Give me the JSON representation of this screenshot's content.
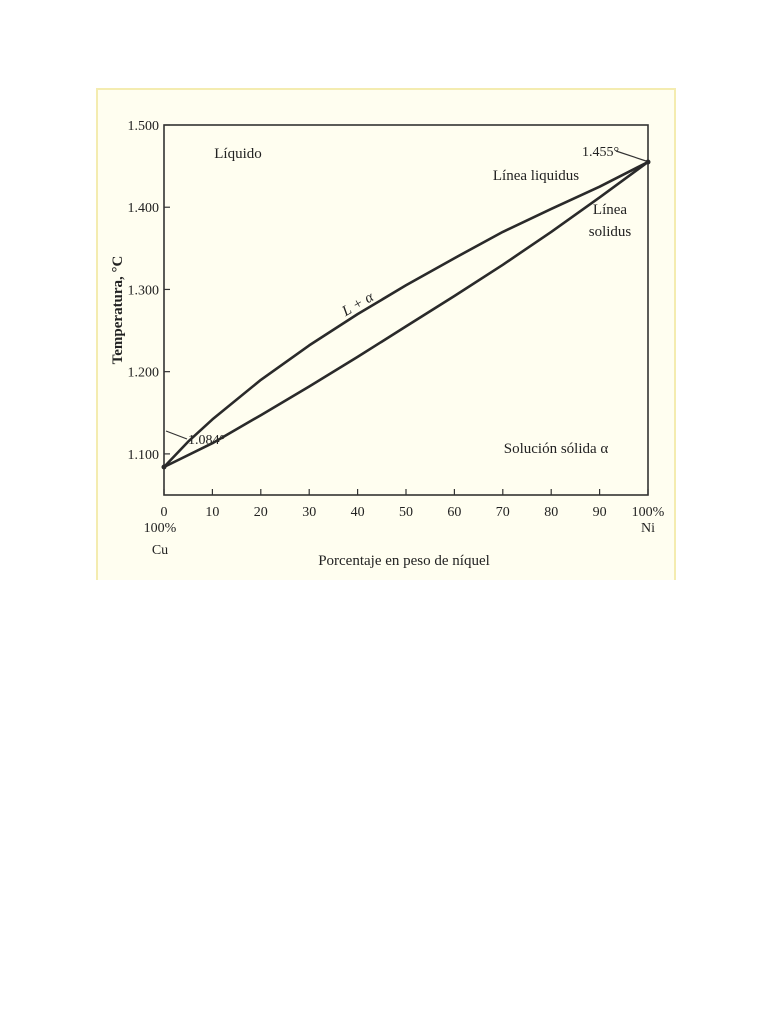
{
  "chart_data": {
    "type": "line",
    "xlabel": "Porcentaje en peso de níquel",
    "ylabel": "Temperatura, °C",
    "xlim": [
      0,
      100
    ],
    "ylim": [
      1050,
      1500
    ],
    "x_ticks": [
      "0",
      "10",
      "20",
      "30",
      "40",
      "50",
      "60",
      "70",
      "80",
      "90",
      "100%"
    ],
    "y_ticks": [
      {
        "value": 1100,
        "label": "1.100"
      },
      {
        "value": 1200,
        "label": "1.200"
      },
      {
        "value": 1300,
        "label": "1.300"
      },
      {
        "value": 1400,
        "label": "1.400"
      },
      {
        "value": 1500,
        "label": "1.500"
      }
    ],
    "x_end_labels": {
      "left": [
        "100%",
        "Cu"
      ],
      "right": [
        "Ni"
      ]
    },
    "series": [
      {
        "name": "Línea liquidus",
        "x": [
          0,
          5,
          10,
          20,
          30,
          40,
          50,
          60,
          70,
          80,
          90,
          100
        ],
        "y": [
          1084,
          1115,
          1142,
          1190,
          1232,
          1270,
          1305,
          1338,
          1370,
          1398,
          1425,
          1455
        ]
      },
      {
        "name": "Línea solidus",
        "x": [
          0,
          10,
          20,
          30,
          40,
          50,
          60,
          70,
          80,
          90,
          100
        ],
        "y": [
          1084,
          1113,
          1147,
          1182,
          1218,
          1255,
          1292,
          1330,
          1370,
          1412,
          1455
        ]
      }
    ],
    "annotations": {
      "liquido": "Líquido",
      "liquidus_1": "Línea liquidus",
      "solidus_1": "Línea",
      "solidus_2": "solidus",
      "two_phase": "L + α",
      "solid": "Solución sólida α",
      "melt_cu": "1.084°",
      "melt_ni": "1.455°"
    },
    "grid": false,
    "legend": "none"
  },
  "colors": {
    "line": "#2a2a2a",
    "axis": "#333333",
    "background": "#fffef0"
  }
}
